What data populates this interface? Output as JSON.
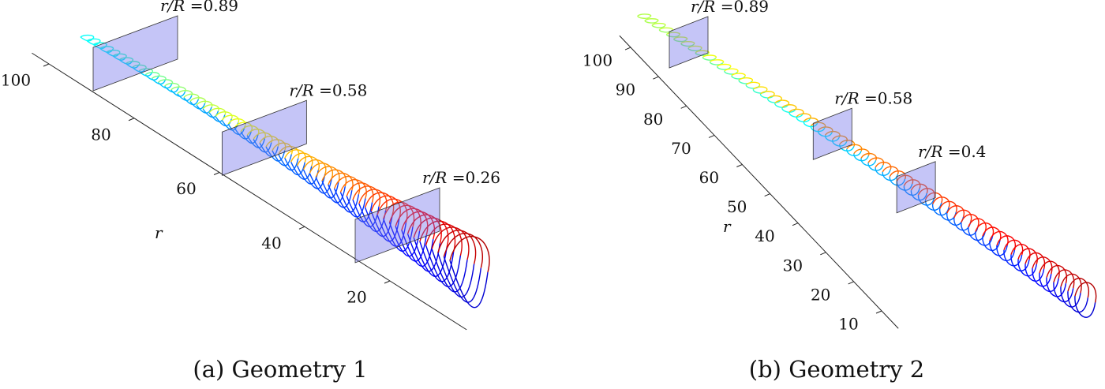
{
  "panels": [
    {
      "caption": "(a) Geometry 1",
      "axis_label": "r",
      "ticks": [
        20,
        40,
        60,
        80,
        100
      ],
      "planes": [
        {
          "label": "r/R =",
          "value": 0.89
        },
        {
          "label": "r/R =",
          "value": 0.58
        },
        {
          "label": "r/R =",
          "value": 0.26
        }
      ]
    },
    {
      "caption": "(b) Geometry 2",
      "axis_label": "r",
      "ticks": [
        10,
        20,
        30,
        40,
        50,
        60,
        70,
        80,
        90,
        100
      ],
      "planes": [
        {
          "label": "r/R =",
          "value": 0.89
        },
        {
          "label": "r/R =",
          "value": 0.58
        },
        {
          "label": "r/R =",
          "value": 0.4
        }
      ]
    }
  ]
}
